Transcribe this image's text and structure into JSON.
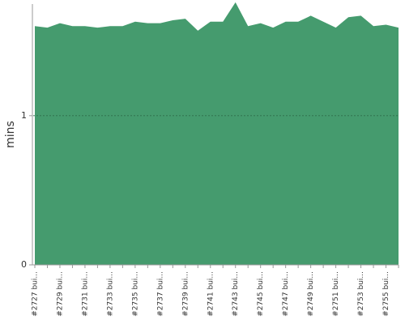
{
  "chart_data": {
    "type": "area",
    "y_label": "mins",
    "categories": [
      "#2727 bui...",
      null,
      "#2729 bui...",
      null,
      "#2731 bui...",
      null,
      "#2733 bui...",
      null,
      "#2735 bui...",
      null,
      "#2737 bui...",
      null,
      "#2739 bui...",
      null,
      "#2741 bui...",
      null,
      "#2743 bui...",
      null,
      "#2745 bui...",
      null,
      "#2747 bui...",
      null,
      "#2749 bui...",
      null,
      "#2751 bui...",
      null,
      "#2753 bui...",
      null,
      "#2755 bui...",
      null
    ],
    "values": [
      1.6,
      1.59,
      1.62,
      1.6,
      1.6,
      1.59,
      1.6,
      1.6,
      1.63,
      1.62,
      1.62,
      1.64,
      1.65,
      1.57,
      1.63,
      1.63,
      1.76,
      1.6,
      1.62,
      1.59,
      1.63,
      1.63,
      1.67,
      1.63,
      1.59,
      1.66,
      1.67,
      1.6,
      1.61,
      1.59
    ],
    "color": "#459b6e",
    "ylim": [
      0,
      1.77
    ],
    "yticks": [
      0,
      1
    ],
    "grid": true
  }
}
